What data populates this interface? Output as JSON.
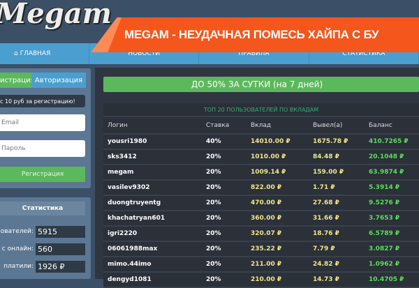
{
  "logo": "Megam",
  "banner": "MEGAM - НЕУДАЧНАЯ ПОМЕСЬ ХАЙПА С БУ",
  "nav": [
    "⌂ ГЛАВНАЯ",
    "НОВОСТИ",
    "ПРАВИЛА",
    "СТАТИСТИКА"
  ],
  "auth": {
    "tab_register": "истрация",
    "tab_login": "Авторизация",
    "bonus": "с 10 руб за регистрацию!",
    "email_placeholder": "Email",
    "password_placeholder": "Пароль",
    "register_button": "Регистрация"
  },
  "stats": {
    "title": "Статистика",
    "rows": [
      {
        "label": "ователей:",
        "value": "5915"
      },
      {
        "label": "с онлайн:",
        "value": "560"
      },
      {
        "label": "платили:",
        "value": "1926 ₽"
      }
    ]
  },
  "promo": "ДО 50% ЗА СУТКИ (на 7 дней)",
  "table": {
    "title": "ТОП 20 ПОЛЬЗОВАТЕЛЕЙ ПО ВКЛАДАМ",
    "headers": [
      "Логин",
      "Ставка",
      "Вклад",
      "Вывел(а)",
      "Баланс"
    ],
    "rows": [
      [
        "yousri1980",
        "40%",
        "14010.00 ₽",
        "1675.78 ₽",
        "410.7265 ₽"
      ],
      [
        "sks3412",
        "20%",
        "1010.00 ₽",
        "84.48 ₽",
        "20.1048 ₽"
      ],
      [
        "megam",
        "20%",
        "1009.14 ₽",
        "159.00 ₽",
        "63.9874 ₽"
      ],
      [
        "vasilev9302",
        "20%",
        "822.00 ₽",
        "1.71 ₽",
        "5.3914 ₽"
      ],
      [
        "duongtruyentg",
        "20%",
        "470.00 ₽",
        "27.68 ₽",
        "9.5276 ₽"
      ],
      [
        "khachatryan601",
        "20%",
        "360.00 ₽",
        "31.66 ₽",
        "3.7653 ₽"
      ],
      [
        "igri2220",
        "20%",
        "320.07 ₽",
        "18.76 ₽",
        "6.5789 ₽"
      ],
      [
        "06061988max",
        "20%",
        "235.22 ₽",
        "7.79 ₽",
        "3.0827 ₽"
      ],
      [
        "mimo.44imo",
        "20%",
        "211.00 ₽",
        "24.82 ₽",
        "1.0962 ₽"
      ],
      [
        "dengyd1081",
        "20%",
        "210.00 ₽",
        "14.73 ₽",
        "10.4705 ₽"
      ]
    ]
  }
}
